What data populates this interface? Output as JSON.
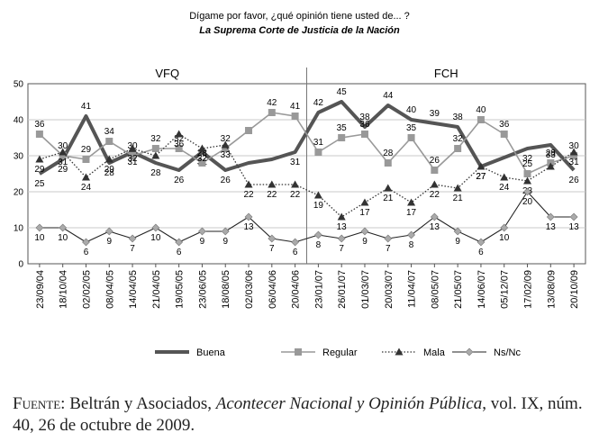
{
  "header": {
    "question": "Dígame por favor, ¿qué opinión tiene usted de... ?",
    "subject": "La Suprema Corte de Justicia de la Nación"
  },
  "source": {
    "label": "Fuente:",
    "authors": "Beltrán y Asociados,",
    "publication": "Acontecer Nacional y Opinión Pública",
    "details": ", vol. IX, núm. 40, 26 de octubre de 2009."
  },
  "chart_data": {
    "type": "line",
    "ylim": [
      0,
      50
    ],
    "yticks": [
      0,
      10,
      20,
      30,
      40,
      50
    ],
    "categories": [
      "23/09/04",
      "18/10/04",
      "02/02/05",
      "08/04/05",
      "14/04/05",
      "21/04/05",
      "19/05/05",
      "23/06/05",
      "18/08/05",
      "02/03/06",
      "06/04/06",
      "20/04/06",
      "23/01/07",
      "26/01/07",
      "01/03/07",
      "20/03/07",
      "11/04/07",
      "08/05/07",
      "21/05/07",
      "14/06/07",
      "05/12/07",
      "17/02/09",
      "13/08/09",
      "20/10/09"
    ],
    "periods": [
      {
        "label": "VFQ",
        "from": 0,
        "to": 11
      },
      {
        "label": "FCH",
        "from": 12,
        "to": 23
      }
    ],
    "grid": true,
    "legend_position": "bottom",
    "series": [
      {
        "name": "Buena",
        "style": "thick",
        "color": "#555555",
        "values": [
          25,
          29,
          41,
          28,
          31,
          28,
          26,
          31,
          26,
          28,
          29,
          31,
          42,
          45,
          38,
          44,
          40,
          39,
          38,
          27,
          null,
          32,
          33,
          26
        ],
        "labels": [
          25,
          29,
          41,
          28,
          31,
          28,
          26,
          31,
          26,
          null,
          null,
          31,
          42,
          45,
          38,
          44,
          40,
          39,
          38,
          27,
          null,
          32,
          33,
          26
        ]
      },
      {
        "name": "Regular",
        "style": "square",
        "color": "#999999",
        "values": [
          36,
          30,
          29,
          34,
          30,
          32,
          32,
          28,
          32,
          37,
          42,
          41,
          31,
          35,
          36,
          28,
          35,
          26,
          32,
          40,
          36,
          25,
          28,
          30
        ],
        "labels": [
          36,
          30,
          29,
          34,
          30,
          32,
          32,
          28,
          32,
          null,
          42,
          41,
          31,
          35,
          36,
          28,
          35,
          26,
          32,
          40,
          36,
          25,
          28,
          30
        ]
      },
      {
        "name": "Mala",
        "style": "dotted-triangle",
        "color": "#333333",
        "values": [
          29,
          31,
          24,
          29,
          32,
          30,
          36,
          32,
          33,
          22,
          22,
          22,
          19,
          13,
          17,
          21,
          17,
          22,
          21,
          27,
          24,
          23,
          27,
          31
        ],
        "labels": [
          29,
          31,
          24,
          29,
          32,
          null,
          36,
          32,
          33,
          22,
          22,
          22,
          19,
          13,
          17,
          21,
          17,
          22,
          21,
          27,
          24,
          23,
          null,
          31
        ]
      },
      {
        "name": "Ns/Nc",
        "style": "thin-diamond",
        "color": "#222222",
        "values": [
          10,
          10,
          6,
          9,
          7,
          10,
          6,
          9,
          9,
          13,
          7,
          6,
          8,
          7,
          9,
          7,
          8,
          13,
          9,
          6,
          10,
          20,
          13,
          13
        ],
        "labels": [
          10,
          10,
          6,
          9,
          7,
          10,
          6,
          9,
          9,
          13,
          7,
          6,
          8,
          7,
          9,
          7,
          8,
          13,
          9,
          6,
          10,
          20,
          13,
          13
        ]
      }
    ]
  }
}
